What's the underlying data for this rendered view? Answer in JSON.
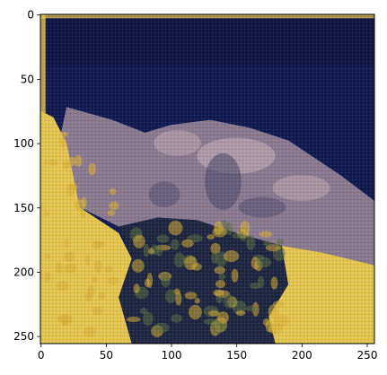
{
  "chart_data": {
    "type": "heatmap",
    "title": "",
    "xlabel": "",
    "ylabel": "",
    "image_size": [
      256,
      256
    ],
    "xlim": [
      0,
      256
    ],
    "ylim": [
      256,
      0
    ],
    "x_ticks": [
      0,
      50,
      100,
      150,
      200,
      250
    ],
    "y_ticks": [
      0,
      50,
      100,
      150,
      200,
      250
    ],
    "grid": false,
    "colors": {
      "sky_navy": "#101a52",
      "sky_deep": "#0a0f3c",
      "mountain_mauve": "#8a7a90",
      "mountain_light": "#c9b6b8",
      "rock_shadow": "#4a4a6a",
      "shore_yellow": "#e6c64a",
      "shore_gold": "#d8b030",
      "foliage_dark": "#1c2640",
      "foliage_green": "#5a7040",
      "axes_edge": "#000000"
    },
    "regions": [
      {
        "name": "sky",
        "polygon": [
          [
            0,
            0
          ],
          [
            256,
            0
          ],
          [
            256,
            140
          ],
          [
            230,
            120
          ],
          [
            190,
            95
          ],
          [
            160,
            85
          ],
          [
            130,
            80
          ],
          [
            100,
            85
          ],
          [
            80,
            90
          ],
          [
            55,
            80
          ],
          [
            20,
            70
          ],
          [
            0,
            75
          ]
        ]
      },
      {
        "name": "mountain",
        "polygon": [
          [
            20,
            72
          ],
          [
            55,
            82
          ],
          [
            80,
            92
          ],
          [
            100,
            86
          ],
          [
            130,
            82
          ],
          [
            160,
            88
          ],
          [
            190,
            98
          ],
          [
            230,
            125
          ],
          [
            256,
            145
          ],
          [
            256,
            195
          ],
          [
            215,
            185
          ],
          [
            185,
            180
          ],
          [
            150,
            170
          ],
          [
            120,
            160
          ],
          [
            90,
            158
          ],
          [
            60,
            165
          ],
          [
            30,
            150
          ],
          [
            10,
            120
          ]
        ]
      },
      {
        "name": "shore-left",
        "polygon": [
          [
            0,
            75
          ],
          [
            10,
            80
          ],
          [
            20,
            100
          ],
          [
            30,
            150
          ],
          [
            60,
            170
          ],
          [
            70,
            190
          ],
          [
            60,
            220
          ],
          [
            70,
            256
          ],
          [
            0,
            256
          ]
        ]
      },
      {
        "name": "foliage",
        "polygon": [
          [
            60,
            165
          ],
          [
            90,
            158
          ],
          [
            120,
            160
          ],
          [
            150,
            170
          ],
          [
            185,
            180
          ],
          [
            190,
            210
          ],
          [
            175,
            235
          ],
          [
            180,
            256
          ],
          [
            70,
            256
          ],
          [
            60,
            220
          ],
          [
            70,
            190
          ]
        ]
      },
      {
        "name": "shore-right",
        "polygon": [
          [
            185,
            180
          ],
          [
            215,
            185
          ],
          [
            256,
            195
          ],
          [
            256,
            256
          ],
          [
            180,
            256
          ],
          [
            175,
            235
          ],
          [
            190,
            210
          ]
        ]
      }
    ]
  }
}
